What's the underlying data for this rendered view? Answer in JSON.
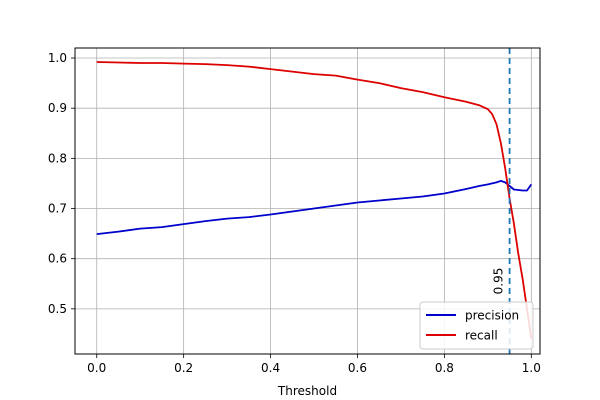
{
  "chart_data": {
    "type": "line",
    "title": "",
    "xlabel": "Threshold",
    "ylabel": "",
    "xlim": [
      -0.05,
      1.02
    ],
    "ylim": [
      0.41,
      1.02
    ],
    "xticks": [
      0.0,
      0.2,
      0.4,
      0.6,
      0.8,
      1.0
    ],
    "xtick_labels": [
      "0.0",
      "0.2",
      "0.4",
      "0.6",
      "0.8",
      "1.0"
    ],
    "yticks": [
      0.5,
      0.6,
      0.7,
      0.8,
      0.9,
      1.0
    ],
    "ytick_labels": [
      "0.5",
      "0.6",
      "0.7",
      "0.8",
      "0.9",
      "1.0"
    ],
    "grid": true,
    "legend_position": "lower-right",
    "series": [
      {
        "name": "precision",
        "color": "#0000cc",
        "x": [
          0.0,
          0.05,
          0.1,
          0.15,
          0.2,
          0.25,
          0.3,
          0.35,
          0.4,
          0.45,
          0.5,
          0.55,
          0.6,
          0.65,
          0.7,
          0.75,
          0.8,
          0.85,
          0.88,
          0.9,
          0.92,
          0.93,
          0.94,
          0.95,
          0.96,
          0.97,
          0.98,
          0.99,
          1.0
        ],
        "y": [
          0.649,
          0.654,
          0.66,
          0.663,
          0.669,
          0.675,
          0.68,
          0.683,
          0.688,
          0.694,
          0.7,
          0.706,
          0.712,
          0.716,
          0.72,
          0.724,
          0.73,
          0.739,
          0.745,
          0.748,
          0.752,
          0.755,
          0.752,
          0.745,
          0.738,
          0.737,
          0.736,
          0.736,
          0.748
        ]
      },
      {
        "name": "recall",
        "color": "#dd0000",
        "x": [
          0.0,
          0.05,
          0.1,
          0.15,
          0.2,
          0.25,
          0.3,
          0.35,
          0.4,
          0.45,
          0.5,
          0.55,
          0.6,
          0.65,
          0.7,
          0.75,
          0.8,
          0.85,
          0.88,
          0.9,
          0.91,
          0.92,
          0.93,
          0.94,
          0.95,
          0.96,
          0.97,
          0.98,
          0.99,
          1.0
        ],
        "y": [
          0.992,
          0.991,
          0.99,
          0.99,
          0.989,
          0.988,
          0.986,
          0.983,
          0.978,
          0.973,
          0.968,
          0.965,
          0.957,
          0.95,
          0.94,
          0.932,
          0.922,
          0.913,
          0.906,
          0.898,
          0.888,
          0.868,
          0.83,
          0.78,
          0.72,
          0.67,
          0.61,
          0.56,
          0.5,
          0.44
        ]
      }
    ],
    "vline": {
      "x": 0.95,
      "color": "#1f77b4",
      "style": "dashed",
      "label": "0.95"
    }
  }
}
